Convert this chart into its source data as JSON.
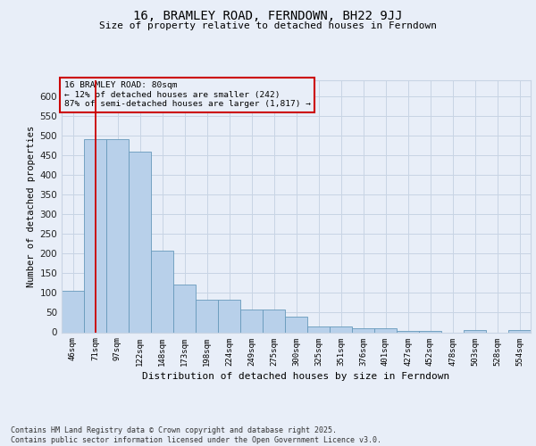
{
  "title_line1": "16, BRAMLEY ROAD, FERNDOWN, BH22 9JJ",
  "title_line2": "Size of property relative to detached houses in Ferndown",
  "xlabel": "Distribution of detached houses by size in Ferndown",
  "ylabel": "Number of detached properties",
  "categories": [
    "46sqm",
    "71sqm",
    "97sqm",
    "122sqm",
    "148sqm",
    "173sqm",
    "198sqm",
    "224sqm",
    "249sqm",
    "275sqm",
    "300sqm",
    "325sqm",
    "351sqm",
    "376sqm",
    "401sqm",
    "427sqm",
    "452sqm",
    "478sqm",
    "503sqm",
    "528sqm",
    "554sqm"
  ],
  "values": [
    105,
    490,
    490,
    458,
    207,
    122,
    83,
    83,
    57,
    57,
    40,
    15,
    15,
    11,
    11,
    4,
    4,
    0,
    6,
    0,
    6
  ],
  "bar_color": "#b8d0ea",
  "bar_edge_color": "#6699bb",
  "grid_color": "#c8d4e4",
  "bg_color": "#e8eef8",
  "vline_x": 1.0,
  "vline_color": "#cc0000",
  "annotation_text": "16 BRAMLEY ROAD: 80sqm\n← 12% of detached houses are smaller (242)\n87% of semi-detached houses are larger (1,817) →",
  "annotation_box_edgecolor": "#cc0000",
  "footer": "Contains HM Land Registry data © Crown copyright and database right 2025.\nContains public sector information licensed under the Open Government Licence v3.0.",
  "ylim_max": 640,
  "yticks": [
    0,
    50,
    100,
    150,
    200,
    250,
    300,
    350,
    400,
    450,
    500,
    550,
    600
  ]
}
